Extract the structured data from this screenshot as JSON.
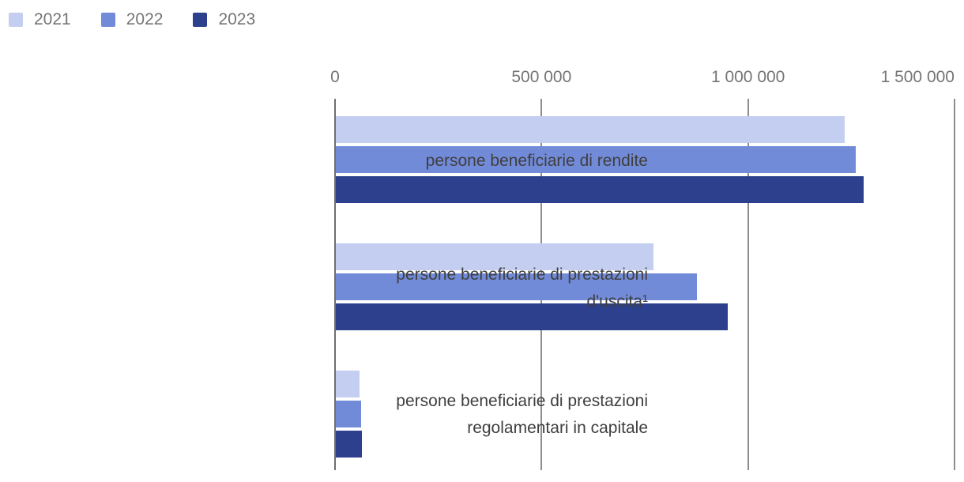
{
  "chart_data": {
    "type": "bar",
    "orientation": "horizontal",
    "title": "",
    "xlabel": "",
    "ylabel": "",
    "xlim": [
      0,
      1500000
    ],
    "grid": "vertical",
    "axis_position": "top",
    "legend_position": "top-left",
    "x_ticks": [
      {
        "value": 0,
        "label": "0"
      },
      {
        "value": 500000,
        "label": "500 000"
      },
      {
        "value": 1000000,
        "label": "1 000 000"
      },
      {
        "value": 1500000,
        "label": "1 500 000"
      }
    ],
    "categories": [
      {
        "text": "persone beneficiarie di rendite",
        "lines": [
          "persone beneficiarie di rendite"
        ]
      },
      {
        "text": "persone beneficiarie di prestazioni d'uscita¹",
        "lines": [
          "persone beneficiarie di prestazioni",
          "d'uscita¹"
        ]
      },
      {
        "text": "persone beneficiarie di prestazioni regolamentari in capitale",
        "lines": [
          "persone beneficiarie di prestazioni",
          "regolamentari in capitale"
        ]
      }
    ],
    "series": [
      {
        "name": "2021",
        "color": "#c4cef0",
        "values": [
          1232000,
          769000,
          57000
        ]
      },
      {
        "name": "2022",
        "color": "#728bd8",
        "values": [
          1259000,
          874000,
          61000
        ]
      },
      {
        "name": "2023",
        "color": "#2c408e",
        "values": [
          1279000,
          949000,
          63000
        ]
      }
    ]
  },
  "colors": {
    "background": "#ffffff",
    "gridline": "#8d8d8d",
    "axis_line": "#6f6f6f",
    "tick_label": "#757575",
    "legend_label": "#757575",
    "category_label": "#3f3f3f"
  }
}
